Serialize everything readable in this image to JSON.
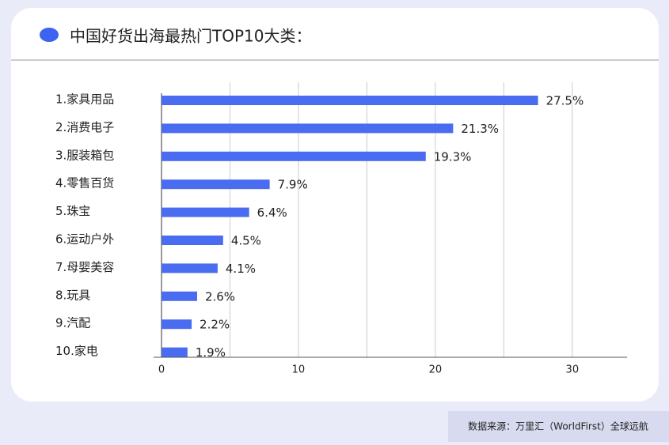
{
  "chart_data": {
    "type": "hbar",
    "title": "中国好货出海最热门TOP10大类：",
    "categories": [
      "1.家具用品",
      "2.消费电子",
      "3.服装箱包",
      "4.零售百货",
      "5.珠宝",
      "6.运动户外",
      "7.母婴美容",
      "8.玩具",
      "9.汽配",
      "10.家电"
    ],
    "values": [
      27.5,
      21.3,
      19.3,
      7.9,
      6.4,
      4.5,
      4.1,
      2.6,
      2.2,
      1.9
    ],
    "value_labels": [
      "27.5%",
      "21.3%",
      "19.3%",
      "7.9%",
      "6.4%",
      "4.5%",
      "4.1%",
      "2.6%",
      "2.2%",
      "1.9%"
    ],
    "color": "#4a6cf0",
    "xlim": [
      0,
      34
    ],
    "xticks": [
      0,
      10,
      20,
      30
    ],
    "x_minor_grid": [
      5,
      15,
      25
    ],
    "grid": true,
    "source": "数据来源：万里汇（WorldFirst）全球远航"
  }
}
